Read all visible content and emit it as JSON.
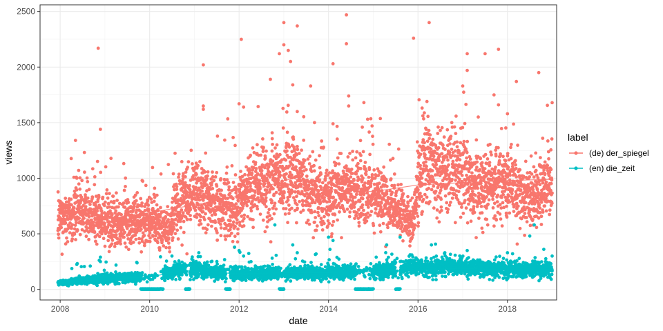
{
  "chart_data": {
    "type": "scatter",
    "title": "",
    "xlabel": "date",
    "ylabel": "views",
    "xlim": [
      2007.55,
      2019.1
    ],
    "ylim": [
      -95,
      2560
    ],
    "x_ticks": [
      2008,
      2010,
      2012,
      2014,
      2016,
      2018
    ],
    "x_tick_labels": [
      "2008",
      "2010",
      "2012",
      "2014",
      "2016",
      "2018"
    ],
    "y_ticks": [
      0,
      500,
      1000,
      1500,
      2000,
      2500
    ],
    "y_tick_labels": [
      "0",
      "500",
      "1000",
      "1500",
      "2000",
      "2500"
    ],
    "grid": true,
    "legend": {
      "title": "label",
      "position": "right",
      "entries": [
        {
          "label": "(de) der_spiegel",
          "color": "#F8766D"
        },
        {
          "label": "(en) die_zeit",
          "color": "#00BFC4"
        }
      ]
    },
    "series": [
      {
        "name": "(de) der_spiegel",
        "color": "#F8766D",
        "trend": [
          [
            2008.0,
            640
          ],
          [
            2009.0,
            630
          ],
          [
            2010.0,
            690
          ],
          [
            2011.0,
            760
          ],
          [
            2012.0,
            840
          ],
          [
            2012.7,
            940
          ],
          [
            2013.2,
            1000
          ],
          [
            2014.0,
            900
          ],
          [
            2015.0,
            880
          ],
          [
            2016.0,
            940
          ],
          [
            2017.0,
            960
          ],
          [
            2018.0,
            980
          ],
          [
            2019.0,
            990
          ]
        ],
        "profile": [
          [
            2008.0,
            620
          ],
          [
            2008.5,
            700
          ],
          [
            2009.0,
            620
          ],
          [
            2009.5,
            600
          ],
          [
            2010.0,
            640
          ],
          [
            2010.45,
            520
          ],
          [
            2010.6,
            780
          ],
          [
            2011.0,
            880
          ],
          [
            2011.5,
            780
          ],
          [
            2011.9,
            700
          ],
          [
            2012.2,
            920
          ],
          [
            2012.8,
            1000
          ],
          [
            2013.2,
            1060
          ],
          [
            2013.6,
            880
          ],
          [
            2014.0,
            820
          ],
          [
            2014.4,
            940
          ],
          [
            2015.0,
            880
          ],
          [
            2015.5,
            720
          ],
          [
            2015.9,
            600
          ],
          [
            2016.1,
            1200
          ],
          [
            2016.5,
            1050
          ],
          [
            2017.0,
            1080
          ],
          [
            2017.3,
            920
          ],
          [
            2018.0,
            950
          ],
          [
            2018.5,
            800
          ],
          [
            2019.0,
            1000
          ]
        ],
        "outliers": [
          [
            2008.85,
            2170
          ],
          [
            2008.9,
            1440
          ],
          [
            2011.2,
            2020
          ],
          [
            2011.2,
            1650
          ],
          [
            2011.2,
            1620
          ],
          [
            2012.05,
            2250
          ],
          [
            2012.0,
            1670
          ],
          [
            2012.1,
            1640
          ],
          [
            2012.7,
            1890
          ],
          [
            2012.9,
            2120
          ],
          [
            2013.0,
            2200
          ],
          [
            2013.0,
            2400
          ],
          [
            2013.1,
            2150
          ],
          [
            2013.15,
            2050
          ],
          [
            2013.2,
            1840
          ],
          [
            2013.3,
            2370
          ],
          [
            2013.3,
            1600
          ],
          [
            2013.6,
            1830
          ],
          [
            2014.1,
            2030
          ],
          [
            2014.1,
            1490
          ],
          [
            2014.4,
            2470
          ],
          [
            2014.4,
            2210
          ],
          [
            2014.45,
            1740
          ],
          [
            2014.45,
            1650
          ],
          [
            2015.9,
            2260
          ],
          [
            2016.25,
            2400
          ],
          [
            2016.2,
            1690
          ],
          [
            2017.0,
            1830
          ],
          [
            2017.1,
            2120
          ],
          [
            2017.1,
            1970
          ],
          [
            2017.5,
            2120
          ],
          [
            2017.7,
            1750
          ],
          [
            2017.8,
            2160
          ],
          [
            2017.8,
            1660
          ],
          [
            2018.0,
            1580
          ],
          [
            2018.2,
            1870
          ],
          [
            2018.7,
            1950
          ],
          [
            2019.0,
            1680
          ]
        ],
        "rows": [
          {
            "x": 2008.0,
            "y": 640
          },
          {
            "x": 2010.0,
            "y": 690
          },
          {
            "x": 2012.0,
            "y": 840
          },
          {
            "x": 2014.0,
            "y": 900
          },
          {
            "x": 2016.0,
            "y": 940
          },
          {
            "x": 2018.0,
            "y": 980
          }
        ]
      },
      {
        "name": "(en) die_zeit",
        "color": "#00BFC4",
        "trend": [
          [
            2008.0,
            60
          ],
          [
            2009.0,
            95
          ],
          [
            2010.0,
            110
          ],
          [
            2010.7,
            170
          ],
          [
            2011.0,
            165
          ],
          [
            2012.0,
            140
          ],
          [
            2013.0,
            150
          ],
          [
            2014.0,
            150
          ],
          [
            2015.0,
            160
          ],
          [
            2016.0,
            180
          ],
          [
            2017.0,
            190
          ],
          [
            2018.0,
            175
          ],
          [
            2019.0,
            180
          ]
        ],
        "profile": [
          [
            2008.0,
            55
          ],
          [
            2009.0,
            100
          ],
          [
            2010.0,
            110
          ],
          [
            2010.7,
            180
          ],
          [
            2011.0,
            180
          ],
          [
            2012.0,
            140
          ],
          [
            2013.0,
            150
          ],
          [
            2014.0,
            150
          ],
          [
            2015.0,
            160
          ],
          [
            2016.0,
            200
          ],
          [
            2017.0,
            200
          ],
          [
            2018.0,
            180
          ],
          [
            2019.0,
            180
          ]
        ],
        "outliers": [
          [
            2008.9,
            290
          ],
          [
            2008.9,
            250
          ],
          [
            2010.5,
            300
          ],
          [
            2011.1,
            330
          ],
          [
            2011.9,
            380
          ],
          [
            2012.0,
            350
          ],
          [
            2012.1,
            300
          ],
          [
            2012.8,
            580
          ],
          [
            2013.2,
            400
          ],
          [
            2013.3,
            330
          ],
          [
            2014.0,
            470
          ],
          [
            2014.1,
            440
          ],
          [
            2015.3,
            400
          ],
          [
            2015.6,
            470
          ],
          [
            2016.3,
            400
          ],
          [
            2016.6,
            330
          ],
          [
            2017.1,
            350
          ],
          [
            2018.0,
            330
          ],
          [
            2018.5,
            480
          ],
          [
            2018.6,
            580
          ],
          [
            2019.0,
            300
          ]
        ],
        "zero_gaps": [
          [
            2009.8,
            2010.3
          ],
          [
            2010.8,
            2010.9
          ],
          [
            2011.7,
            2011.8
          ],
          [
            2012.9,
            2013.0
          ],
          [
            2014.6,
            2015.0
          ],
          [
            2015.5,
            2015.6
          ]
        ],
        "rows": [
          {
            "x": 2008.0,
            "y": 60
          },
          {
            "x": 2010.0,
            "y": 110
          },
          {
            "x": 2012.0,
            "y": 140
          },
          {
            "x": 2014.0,
            "y": 150
          },
          {
            "x": 2016.0,
            "y": 180
          },
          {
            "x": 2018.0,
            "y": 175
          }
        ]
      }
    ]
  }
}
